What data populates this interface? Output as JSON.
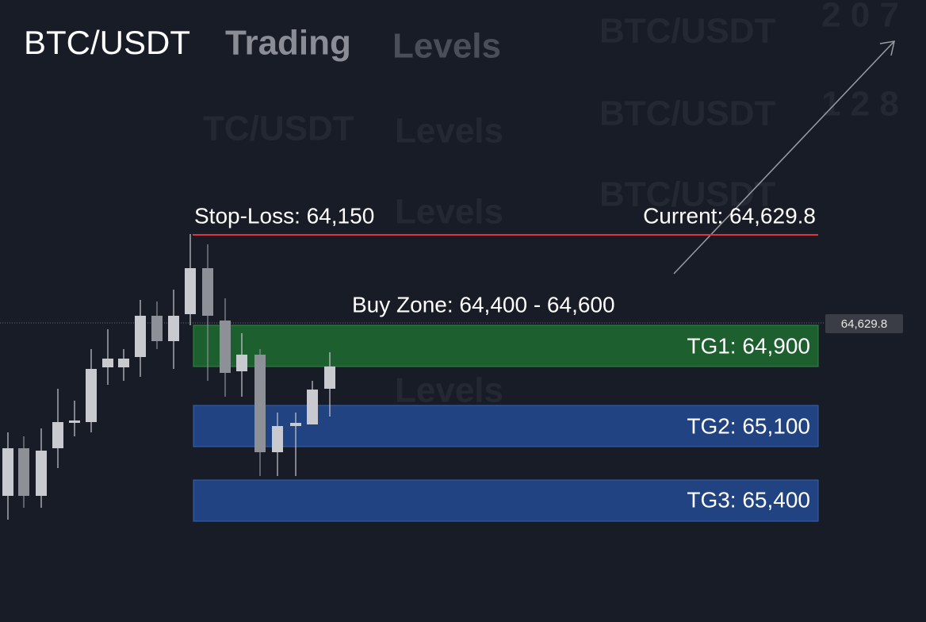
{
  "header": {
    "title": "BTC/USDT",
    "subtitle_1": "Trading",
    "subtitle_2": "Levels"
  },
  "levels": {
    "stop_loss": "Stop-Loss: 64,150",
    "current": "Current: 64,629.8",
    "buy_zone": "Buy Zone: 64,400 - 64,600",
    "tg1": "TG1: 64,900",
    "tg2": "TG2: 65,100",
    "tg3": "TG3: 65,400"
  },
  "price_tag": "64,629.8",
  "watermarks": [
    "BTC/USDT",
    "BTC/USDT",
    "BTC/USDT",
    "TC/USDT",
    "Levels",
    "Levels",
    "Levels",
    "2 0 7",
    "1 2 8"
  ]
}
